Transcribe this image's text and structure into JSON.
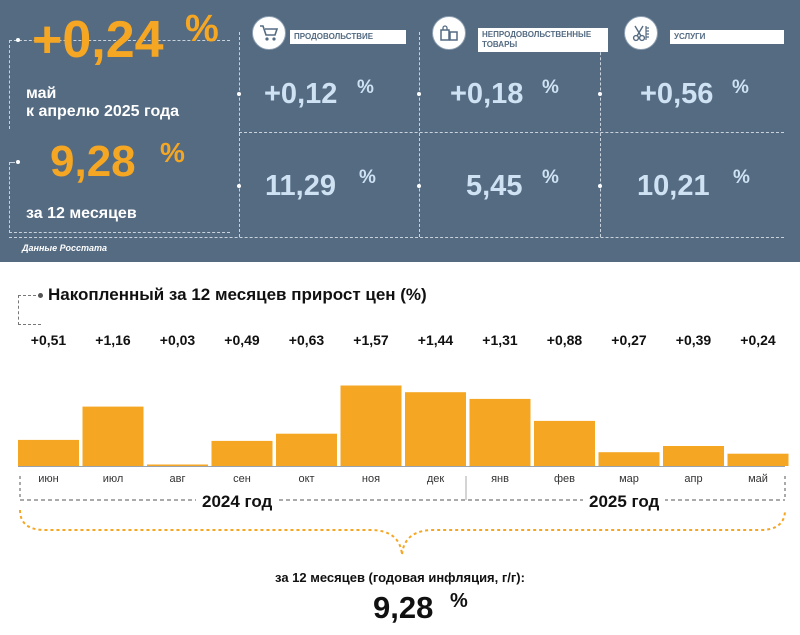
{
  "headline": {
    "monthly_value": "+0,24",
    "monthly_pct": "%",
    "monthly_caption_line1": "май",
    "monthly_caption_line2": "к апрелю 2025 года",
    "annual_value": "9,28",
    "annual_pct": "%",
    "annual_caption": "за 12 месяцев"
  },
  "categories": [
    {
      "label": "ПРОДОВОЛЬСТВИЕ",
      "icon": "shopping-cart-icon",
      "monthly": "+0,12",
      "annual": "11,29",
      "pct": "%"
    },
    {
      "label": "НЕПРОДОВОЛЬСТВЕННЫЕ ТОВАРЫ",
      "icon": "goods-bags-icon",
      "monthly": "+0,18",
      "annual": "5,45",
      "pct": "%"
    },
    {
      "label": "УСЛУГИ",
      "icon": "scissors-comb-icon",
      "monthly": "+0,56",
      "annual": "10,21",
      "pct": "%"
    }
  ],
  "source": "Данные Росстата",
  "chart_data": {
    "type": "bar",
    "title": "Накопленный за 12 месяцев прирост цен (%)",
    "categories": [
      "июн",
      "июл",
      "авг",
      "сен",
      "окт",
      "ноя",
      "дек",
      "янв",
      "фев",
      "мар",
      "апр",
      "май"
    ],
    "values": [
      0.51,
      1.16,
      0.03,
      0.49,
      0.63,
      1.57,
      1.44,
      1.31,
      0.88,
      0.27,
      0.39,
      0.24
    ],
    "value_labels": [
      "+0,51",
      "+1,16",
      "+0,03",
      "+0,49",
      "+0,63",
      "+1,57",
      "+1,44",
      "+1,31",
      "+0,88",
      "+0,27",
      "+0,39",
      "+0,24"
    ],
    "year_groups": [
      {
        "label": "2024 год",
        "from": "июн",
        "to": "дек"
      },
      {
        "label": "2025 год",
        "from": "янв",
        "to": "май"
      }
    ],
    "ylim": [
      0,
      1.6
    ],
    "bar_color": "#f5a623",
    "grid": false
  },
  "footer": {
    "caption": "за 12 месяцев (годовая инфляция, г/г):",
    "value": "9,28",
    "pct": "%"
  },
  "colors": {
    "panel": "#546b82",
    "accent": "#f5a623",
    "value_blue": "#cfe2f3"
  }
}
